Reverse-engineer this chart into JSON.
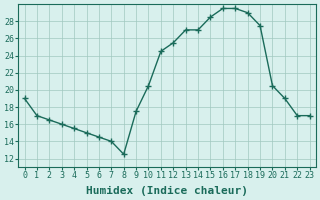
{
  "x": [
    0,
    1,
    2,
    3,
    4,
    5,
    6,
    7,
    8,
    9,
    10,
    11,
    12,
    13,
    14,
    15,
    16,
    17,
    18,
    19,
    20,
    21,
    22,
    23
  ],
  "y": [
    19,
    17,
    16.5,
    16,
    15.5,
    15,
    14.5,
    14,
    12.5,
    17.5,
    20.5,
    24.5,
    25.5,
    27,
    27,
    28.5,
    29.5,
    29.5,
    29,
    27.5,
    20.5,
    19,
    17,
    17
  ],
  "xlabel": "Humidex (Indice chaleur)",
  "xlim": [
    -0.5,
    23.5
  ],
  "ylim": [
    11,
    30
  ],
  "yticks": [
    12,
    14,
    16,
    18,
    20,
    22,
    24,
    26,
    28
  ],
  "xticks": [
    0,
    1,
    2,
    3,
    4,
    5,
    6,
    7,
    8,
    9,
    10,
    11,
    12,
    13,
    14,
    15,
    16,
    17,
    18,
    19,
    20,
    21,
    22,
    23
  ],
  "line_color": "#1a6b5a",
  "bg_color": "#d8f0ed",
  "grid_color": "#a0c8c0",
  "label_fontsize": 8,
  "tick_fontsize": 6
}
